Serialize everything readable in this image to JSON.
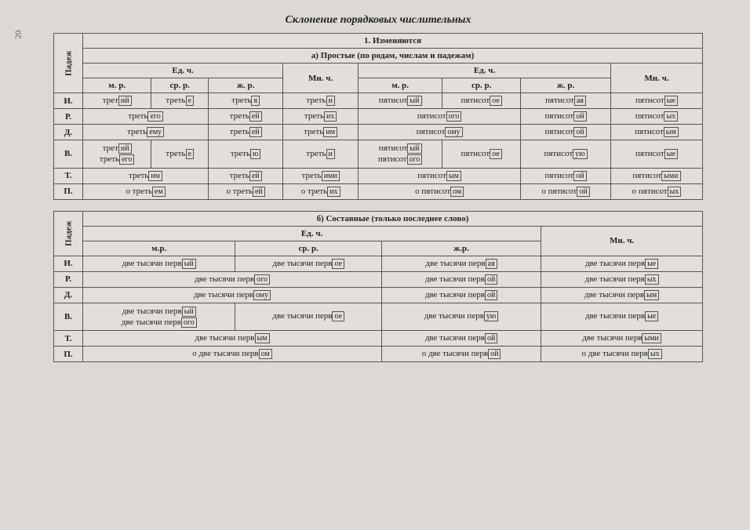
{
  "page_number": "20",
  "title": "Склонение порядковых числительных",
  "colors": {
    "bg": "#dcd8d4",
    "border": "#555555",
    "text": "#222222"
  },
  "table1": {
    "header_main": "1. Изменяются",
    "header_sub": "а) Простые (по родам, числам и падежам)",
    "col_padezh": "Падеж",
    "group_ed1": "Ед. ч.",
    "group_mn1": "Мн. ч.",
    "group_ed2": "Ед. ч.",
    "group_mn2": "Мн. ч.",
    "col_mr1": "м. р.",
    "col_sr1": "ср. р.",
    "col_zh1": "ж. р.",
    "col_mr2": "м. р.",
    "col_sr2": "ср. р.",
    "col_zh2": "ж. р.",
    "cases": [
      "И.",
      "Р.",
      "Д.",
      "В.",
      "Т.",
      "П."
    ],
    "stem1": "трет",
    "stem1b": "треть",
    "stem1c": "о треть",
    "stem2": "пятисот",
    "stem2c": "о пятисот",
    "suffixes": {
      "r1c1": "ий",
      "r1c2": "е",
      "r1c3": "я",
      "r1c4": "и",
      "r1c5": "ый",
      "r1c6": "ое",
      "r1c7": "ая",
      "r1c8": "ые",
      "r2c12": "его",
      "r2c3": "ей",
      "r2c4": "их",
      "r2c56": "ого",
      "r2c7": "ой",
      "r2c8": "ых",
      "r3c12": "ему",
      "r3c3": "ей",
      "r3c4": "им",
      "r3c56": "ому",
      "r3c7": "ой",
      "r3c8": "ым",
      "r4c1a": "ий",
      "r4c1b": "его",
      "r4c2": "е",
      "r4c3": "ю",
      "r4c4": "и",
      "r4c5a": "ый",
      "r4c5b": "ого",
      "r4c6": "ое",
      "r4c7": "ую",
      "r4c8": "ые",
      "r5c12": "им",
      "r5c3": "ей",
      "r5c4": "ими",
      "r5c56": "ым",
      "r5c7": "ой",
      "r5c8": "ыми",
      "r6c12": "ем",
      "r6c3": "ей",
      "r6c4": "их",
      "r6c56": "ом",
      "r6c7": "ой",
      "r6c8": "ых"
    }
  },
  "table2": {
    "header_sub": "б) Составные (только последнее слово)",
    "col_padezh": "Падеж",
    "group_ed": "Ед. ч.",
    "group_mn": "Мн. ч.",
    "col_mr": "м.р.",
    "col_sr": "ср. р.",
    "col_zh": "ж.р.",
    "cases": [
      "И.",
      "Р.",
      "Д.",
      "В.",
      "Т.",
      "П."
    ],
    "stem": "две тысячи перв",
    "stem_p": "о две тысячи перв",
    "suffixes": {
      "r1c1": "ый",
      "r1c2": "ое",
      "r1c3": "ая",
      "r1c4": "ые",
      "r2c12": "ого",
      "r2c3": "ой",
      "r2c4": "ых",
      "r3c12": "ому",
      "r3c3": "ой",
      "r3c4": "ым",
      "r4c1a": "ый",
      "r4c1b": "ого",
      "r4c2": "ое",
      "r4c3": "ую",
      "r4c4": "ые",
      "r5c12": "ым",
      "r5c3": "ой",
      "r5c4": "ыми",
      "r6c12": "ом",
      "r6c3": "ой",
      "r6c4": "ых"
    }
  }
}
